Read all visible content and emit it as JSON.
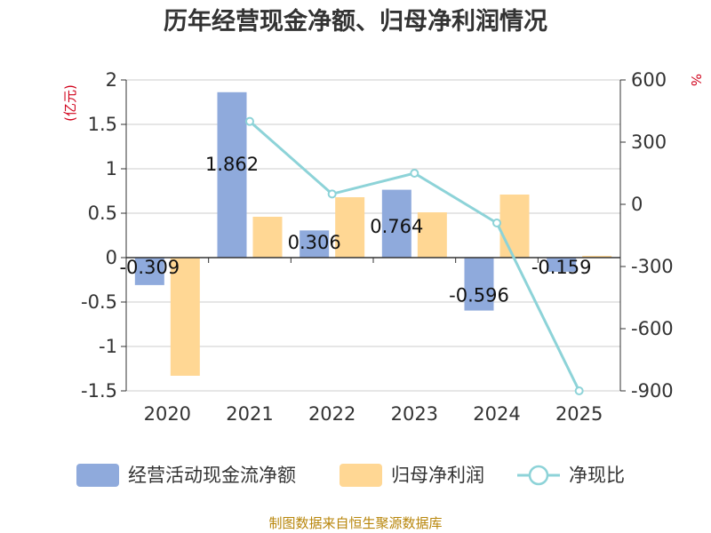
{
  "chart_data": {
    "type": "bar",
    "title": "历年经营现金净额、归母净利润情况",
    "categories": [
      "2020",
      "2021",
      "2022",
      "2023",
      "2024",
      "2025"
    ],
    "left_axis": {
      "unit": "(亿元)",
      "ylim": [
        -1.5,
        2
      ],
      "ticks": [
        "2",
        "1.5",
        "1",
        "0.5",
        "0",
        "-0.5",
        "-1",
        "-1.5"
      ]
    },
    "right_axis": {
      "unit": "%",
      "ylim": [
        -900,
        600
      ],
      "ticks": [
        "600",
        "300",
        "0",
        "-300",
        "-600",
        "-900"
      ]
    },
    "series": [
      {
        "name": "经营活动现金流净额",
        "type": "bar",
        "axis": "left",
        "color": "#8faadc",
        "values": [
          -0.309,
          1.862,
          0.306,
          0.764,
          -0.596,
          -0.159
        ],
        "labels": [
          "-0.309",
          "1.862",
          "0.306",
          "0.764",
          "-0.596",
          "-0.159"
        ]
      },
      {
        "name": "归母净利润",
        "type": "bar",
        "axis": "left",
        "color": "#ffd794",
        "values": [
          -1.33,
          0.46,
          0.68,
          0.51,
          0.71,
          0.02
        ]
      },
      {
        "name": "净现比",
        "type": "line",
        "axis": "right",
        "color": "#8dd3d8",
        "values": [
          null,
          400,
          50,
          150,
          -90,
          -900
        ]
      }
    ],
    "source": "制图数据来自恒生聚源数据库"
  }
}
